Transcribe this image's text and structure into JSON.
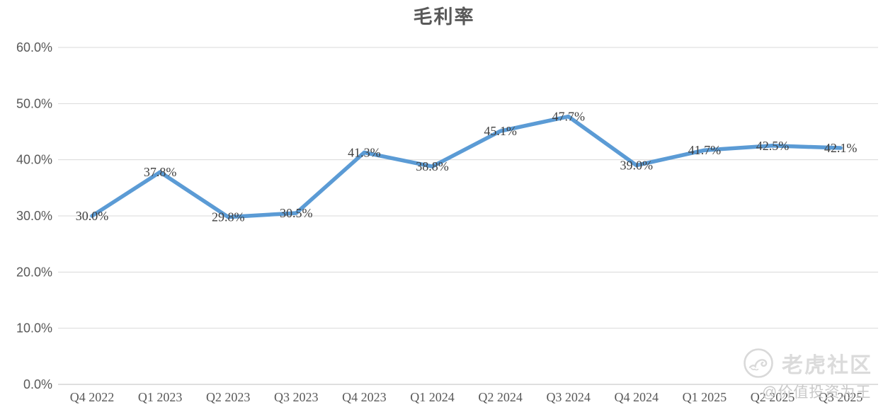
{
  "title": "毛利率",
  "chart_data": {
    "type": "line",
    "title": "毛利率",
    "xlabel": "",
    "ylabel": "",
    "categories": [
      "Q4 2022",
      "Q1 2023",
      "Q2 2023",
      "Q3 2023",
      "Q4 2023",
      "Q1 2024",
      "Q2 2024",
      "Q3 2024",
      "Q4 2024",
      "Q1 2025",
      "Q2 2025",
      "Q3 2025"
    ],
    "values": [
      30.0,
      37.8,
      29.8,
      30.5,
      41.3,
      38.8,
      45.1,
      47.7,
      39.0,
      41.7,
      42.5,
      42.1
    ],
    "point_labels": [
      "30.0%",
      "37.8%",
      "29.8%",
      "30.5%",
      "41.3%",
      "38.8%",
      "45.1%",
      "47.7%",
      "39.0%",
      "41.7%",
      "42.5%",
      "42.1%"
    ],
    "ylim": [
      0,
      60
    ],
    "y_ticks": [
      "0.0%",
      "10.0%",
      "20.0%",
      "30.0%",
      "40.0%",
      "50.0%",
      "60.0%"
    ],
    "grid": true,
    "legend": "none",
    "line_color": "#5B9BD5",
    "gridline_color": "#D9D9D9",
    "axis_line_color": "#BFBFBF"
  },
  "watermark": {
    "logo_icon": "tiger-circle-icon",
    "community_name": "老虎社区",
    "handle": "@价值投资为王"
  }
}
